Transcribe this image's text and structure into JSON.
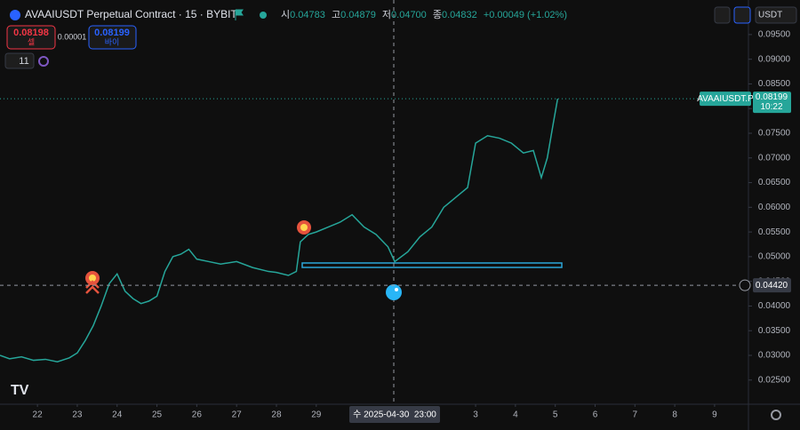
{
  "header": {
    "symbol": "AVAAIUSDT Perpetual Contract · 15 · BYBIT",
    "ohlc": [
      {
        "label": "시",
        "value": "0.04783"
      },
      {
        "label": "고",
        "value": "0.04879"
      },
      {
        "label": "저",
        "value": "0.04700"
      },
      {
        "label": "종",
        "value": "0.04832"
      }
    ],
    "change": "+0.00049 (+1.02%)"
  },
  "order": {
    "sell_price": "0.08198",
    "sell_label": "셀",
    "spread": "0.00001",
    "buy_price": "0.08199",
    "buy_label": "바이"
  },
  "indicators": {
    "count": "11"
  },
  "currency": "USDT",
  "chart_data": {
    "type": "line",
    "x": [
      0.06,
      0.3,
      0.6,
      0.9,
      1.2,
      1.5,
      1.8,
      2.0,
      2.2,
      2.4,
      2.6,
      2.8,
      3.0,
      3.2,
      3.4,
      3.6,
      3.8,
      4.0,
      4.2,
      4.4,
      4.6,
      4.8,
      5.0,
      5.3,
      5.6,
      6.0,
      6.4,
      6.8,
      7.0,
      7.3,
      7.5,
      7.6,
      7.8,
      8.0,
      8.3,
      8.6,
      8.9,
      9.2,
      9.5,
      9.8,
      9.97,
      10.3,
      10.6,
      10.9,
      11.2,
      11.5,
      11.8,
      12.0,
      12.3,
      12.6,
      12.9,
      13.2,
      13.45,
      13.65,
      13.8,
      13.95,
      14.06
    ],
    "series": [
      {
        "name": "AVAAIUSDT.P",
        "color": "#26a69a",
        "values": [
          0.03,
          0.0293,
          0.0297,
          0.029,
          0.0292,
          0.0287,
          0.0295,
          0.0305,
          0.033,
          0.036,
          0.04,
          0.0445,
          0.0465,
          0.043,
          0.0415,
          0.0405,
          0.041,
          0.042,
          0.047,
          0.05,
          0.0505,
          0.0515,
          0.0495,
          0.049,
          0.0485,
          0.049,
          0.0478,
          0.047,
          0.0468,
          0.0462,
          0.047,
          0.053,
          0.0545,
          0.055,
          0.056,
          0.057,
          0.0585,
          0.056,
          0.0545,
          0.052,
          0.049,
          0.051,
          0.054,
          0.056,
          0.06,
          0.062,
          0.064,
          0.073,
          0.0745,
          0.074,
          0.073,
          0.071,
          0.0715,
          0.066,
          0.07,
          0.077,
          0.082
        ]
      }
    ],
    "xlim": [
      0.06,
      18.85
    ],
    "ylim": [
      0.0201,
      0.102
    ],
    "xticks": [
      {
        "value": 1,
        "label": "22"
      },
      {
        "value": 2,
        "label": "23"
      },
      {
        "value": 3,
        "label": "24"
      },
      {
        "value": 4,
        "label": "25"
      },
      {
        "value": 5,
        "label": "26"
      },
      {
        "value": 6,
        "label": "27"
      },
      {
        "value": 7,
        "label": "28"
      },
      {
        "value": 8,
        "label": "29"
      },
      {
        "value": 12,
        "label": "3"
      },
      {
        "value": 13,
        "label": "4"
      },
      {
        "value": 14,
        "label": "5"
      },
      {
        "value": 15,
        "label": "6"
      },
      {
        "value": 16,
        "label": "7"
      },
      {
        "value": 17,
        "label": "8"
      },
      {
        "value": 18,
        "label": "9"
      }
    ],
    "yticks": [
      {
        "value": 0.095,
        "label": "0.09500"
      },
      {
        "value": 0.09,
        "label": "0.09000"
      },
      {
        "value": 0.085,
        "label": "0.08500"
      },
      {
        "value": 0.08,
        "label": "0.08000"
      },
      {
        "value": 0.075,
        "label": "0.07500"
      },
      {
        "value": 0.07,
        "label": "0.07000"
      },
      {
        "value": 0.065,
        "label": "0.06500"
      },
      {
        "value": 0.06,
        "label": "0.06000"
      },
      {
        "value": 0.055,
        "label": "0.05500"
      },
      {
        "value": 0.05,
        "label": "0.05000"
      },
      {
        "value": 0.045,
        "label": "0.04500"
      },
      {
        "value": 0.04,
        "label": "0.04000"
      },
      {
        "value": 0.035,
        "label": "0.03500"
      },
      {
        "value": 0.03,
        "label": "0.03000"
      },
      {
        "value": 0.025,
        "label": "0.02500"
      }
    ],
    "grid": false,
    "last_price": {
      "value": 0.08199,
      "label": "0.08199"
    },
    "countdown": "10:22",
    "crosshair": {
      "price": {
        "value": 0.0442,
        "label": "0.04420"
      },
      "time": "수 2025-04-30  23:00"
    }
  }
}
